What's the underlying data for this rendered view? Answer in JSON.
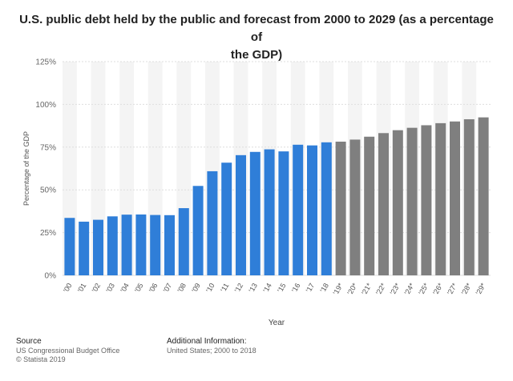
{
  "chart_data": {
    "type": "bar",
    "title_lines": [
      "U.S. public debt held by the public and forecast from 2000 to 2029 (as a percentage of",
      "the GDP)"
    ],
    "xlabel": "Year",
    "ylabel": "Percentage of the GDP",
    "ylim": [
      0,
      125
    ],
    "yticks": [
      0,
      25,
      50,
      75,
      100,
      125
    ],
    "ytick_labels": [
      "0%",
      "25%",
      "50%",
      "75%",
      "100%",
      "125%"
    ],
    "grid": true,
    "categories": [
      "'00",
      "'01",
      "'02",
      "'03",
      "'04",
      "'05",
      "'06",
      "'07",
      "'08",
      "'09",
      "'10",
      "'11",
      "'12",
      "'13",
      "'14",
      "'15",
      "'16",
      "'17",
      "'18",
      "'19*",
      "'20*",
      "'21*",
      "'22*",
      "'23*",
      "'24*",
      "'25*",
      "'26*",
      "'27*",
      "'28*",
      "'29*"
    ],
    "values": [
      33.6,
      31.4,
      32.5,
      34.5,
      35.5,
      35.6,
      35.3,
      35.2,
      39.3,
      52.3,
      60.9,
      65.9,
      70.3,
      72.2,
      73.7,
      72.5,
      76.4,
      76.0,
      77.8,
      78.2,
      79.4,
      81.1,
      83.2,
      84.9,
      86.3,
      87.8,
      89.0,
      90.0,
      91.3,
      92.4
    ],
    "colors": {
      "actual": "#2f7ed8",
      "forecast": "#7f7f7f",
      "band": "#f4f4f4",
      "grid": "#dedede"
    },
    "forecast_start_index": 19
  },
  "footer": {
    "source_heading": "Source",
    "source_name": "US Congressional Budget Office",
    "copyright": "© Statista 2019",
    "info_heading": "Additional Information:",
    "info_text": "United States; 2000 to 2018"
  }
}
